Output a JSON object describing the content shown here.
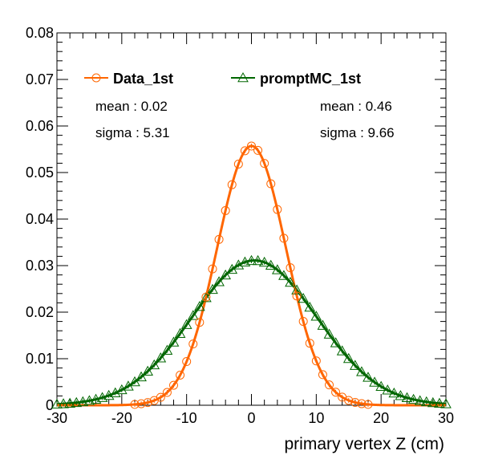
{
  "chart_data": {
    "type": "line",
    "title": "",
    "xlabel": "primary vertex Z (cm)",
    "ylabel": "",
    "xlim": [
      -30,
      30
    ],
    "ylim": [
      0,
      0.08
    ],
    "x_ticks": [
      -30,
      -20,
      -10,
      0,
      10,
      20,
      30
    ],
    "y_ticks": [
      0,
      0.01,
      0.02,
      0.03,
      0.04,
      0.05,
      0.06,
      0.07,
      0.08
    ],
    "x_tick_labels": [
      "-30",
      "-20",
      "-10",
      "0",
      "10",
      "20",
      "30"
    ],
    "y_tick_labels": [
      "0",
      "0.01",
      "0.02",
      "0.03",
      "0.04",
      "0.05",
      "0.06",
      "0.07",
      "0.08"
    ],
    "grid": false,
    "legend_position": "top",
    "series": [
      {
        "name": "Data_1st",
        "color": "#ff6600",
        "marker": "open-circle",
        "fit": {
          "function": "gaussian",
          "amplitude": 0.0557,
          "mean": 0.02,
          "sigma": 5.31
        },
        "points_x_range": [
          -18,
          18
        ],
        "points_step": 1,
        "stats": {
          "mean_label": "mean : 0.02",
          "sigma_label": "sigma : 5.31"
        }
      },
      {
        "name": "promptMC_1st",
        "color": "#006600",
        "marker": "open-triangle",
        "fit": {
          "function": "gaussian",
          "amplitude": 0.0311,
          "mean": 0.46,
          "sigma": 9.66
        },
        "points_x_range": [
          -30,
          30
        ],
        "points_step": 1,
        "stats": {
          "mean_label": "mean : 0.46",
          "sigma_label": "sigma : 9.66"
        }
      }
    ]
  }
}
